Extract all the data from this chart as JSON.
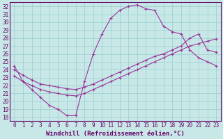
{
  "xlabel": "Windchill (Refroidissement éolien,°C)",
  "bg_color": "#c8e8e8",
  "grid_color": "#99cccc",
  "line_color": "#993399",
  "axes_color": "#660066",
  "xlim": [
    -0.5,
    23.5
  ],
  "ylim": [
    17.5,
    32.5
  ],
  "xticks": [
    0,
    1,
    2,
    3,
    4,
    5,
    6,
    7,
    8,
    9,
    10,
    11,
    12,
    13,
    14,
    15,
    16,
    17,
    18,
    19,
    20,
    21,
    22,
    23
  ],
  "yticks": [
    18,
    19,
    20,
    21,
    22,
    23,
    24,
    25,
    26,
    27,
    28,
    29,
    30,
    31,
    32
  ],
  "curve1_x": [
    0,
    1,
    2,
    3,
    4,
    5,
    6,
    7,
    8,
    9,
    10,
    11,
    12,
    13,
    14,
    15,
    16,
    17,
    18,
    19,
    20,
    21,
    22,
    23
  ],
  "curve1_y": [
    24.5,
    22.5,
    21.5,
    20.5,
    19.5,
    19.0,
    18.2,
    18.2,
    22.5,
    26.0,
    28.5,
    30.5,
    31.5,
    32.0,
    32.2,
    31.7,
    31.5,
    29.5,
    28.8,
    28.5,
    26.5,
    25.5,
    25.0,
    24.5
  ],
  "curve2_x": [
    0,
    1,
    2,
    3,
    4,
    5,
    6,
    7,
    8,
    9,
    10,
    11,
    12,
    13,
    14,
    15,
    16,
    17,
    18,
    19,
    20,
    21,
    22,
    23
  ],
  "curve2_y": [
    23.2,
    22.5,
    22.0,
    21.5,
    21.2,
    21.0,
    20.8,
    20.7,
    21.0,
    21.5,
    22.0,
    22.5,
    23.0,
    23.5,
    24.0,
    24.5,
    25.0,
    25.5,
    26.0,
    26.5,
    27.0,
    27.3,
    27.6,
    27.9
  ],
  "curve3_x": [
    0,
    1,
    2,
    3,
    4,
    5,
    6,
    7,
    8,
    9,
    10,
    11,
    12,
    13,
    14,
    15,
    16,
    17,
    18,
    19,
    20,
    21,
    22,
    23
  ],
  "curve3_y": [
    24.0,
    23.3,
    22.7,
    22.2,
    22.0,
    21.8,
    21.6,
    21.5,
    21.8,
    22.2,
    22.7,
    23.2,
    23.7,
    24.2,
    24.7,
    25.2,
    25.7,
    26.0,
    26.5,
    27.0,
    28.0,
    28.5,
    26.5,
    26.2
  ],
  "xlabel_fontsize": 6.5,
  "tick_fontsize": 5.5
}
